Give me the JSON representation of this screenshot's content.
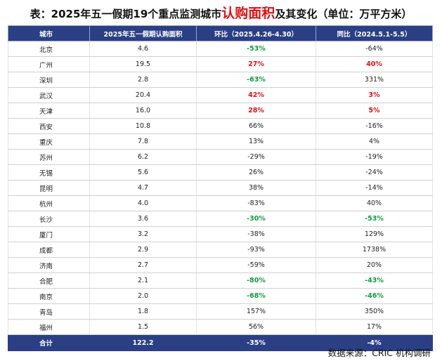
{
  "title": {
    "prefix": "表：2025年五一假期19个重点监测城市",
    "highlight": "认购面积",
    "suffix": "及其变化（单位：万平方米）"
  },
  "table": {
    "headers": [
      "城市",
      "2025年五一假期认购面积",
      "环比（2025.4.26-4.30）",
      "同比（2024.5.1-5.5）"
    ],
    "rows": [
      {
        "city": "北京",
        "area": "4.6",
        "mom": "-53%",
        "mom_style": "down",
        "yoy": "-64%",
        "yoy_style": "plain"
      },
      {
        "city": "广州",
        "area": "19.5",
        "mom": "27%",
        "mom_style": "up",
        "yoy": "40%",
        "yoy_style": "up"
      },
      {
        "city": "深圳",
        "area": "2.8",
        "mom": "-63%",
        "mom_style": "down",
        "yoy": "331%",
        "yoy_style": "plain"
      },
      {
        "city": "武汉",
        "area": "20.4",
        "mom": "42%",
        "mom_style": "up",
        "yoy": "3%",
        "yoy_style": "up"
      },
      {
        "city": "天津",
        "area": "16.0",
        "mom": "28%",
        "mom_style": "up",
        "yoy": "5%",
        "yoy_style": "up"
      },
      {
        "city": "西安",
        "area": "10.8",
        "mom": "66%",
        "mom_style": "plain",
        "yoy": "-16%",
        "yoy_style": "plain"
      },
      {
        "city": "重庆",
        "area": "7.8",
        "mom": "13%",
        "mom_style": "plain",
        "yoy": "4%",
        "yoy_style": "plain"
      },
      {
        "city": "苏州",
        "area": "6.2",
        "mom": "-29%",
        "mom_style": "plain",
        "yoy": "-19%",
        "yoy_style": "plain"
      },
      {
        "city": "无锡",
        "area": "5.6",
        "mom": "26%",
        "mom_style": "plain",
        "yoy": "-24%",
        "yoy_style": "plain"
      },
      {
        "city": "昆明",
        "area": "4.7",
        "mom": "38%",
        "mom_style": "plain",
        "yoy": "-14%",
        "yoy_style": "plain"
      },
      {
        "city": "杭州",
        "area": "4.0",
        "mom": "-83%",
        "mom_style": "plain",
        "yoy": "40%",
        "yoy_style": "plain"
      },
      {
        "city": "长沙",
        "area": "3.6",
        "mom": "-30%",
        "mom_style": "down",
        "yoy": "-53%",
        "yoy_style": "down"
      },
      {
        "city": "厦门",
        "area": "3.2",
        "mom": "-38%",
        "mom_style": "plain",
        "yoy": "129%",
        "yoy_style": "plain"
      },
      {
        "city": "成都",
        "area": "2.9",
        "mom": "-93%",
        "mom_style": "plain",
        "yoy": "1738%",
        "yoy_style": "plain"
      },
      {
        "city": "济南",
        "area": "2.7",
        "mom": "-59%",
        "mom_style": "plain",
        "yoy": "20%",
        "yoy_style": "plain"
      },
      {
        "city": "合肥",
        "area": "2.1",
        "mom": "-80%",
        "mom_style": "down",
        "yoy": "-43%",
        "yoy_style": "down"
      },
      {
        "city": "南京",
        "area": "2.0",
        "mom": "-68%",
        "mom_style": "down",
        "yoy": "-46%",
        "yoy_style": "down"
      },
      {
        "city": "青岛",
        "area": "1.8",
        "mom": "157%",
        "mom_style": "plain",
        "yoy": "350%",
        "yoy_style": "plain"
      },
      {
        "city": "福州",
        "area": "1.5",
        "mom": "56%",
        "mom_style": "plain",
        "yoy": "17%",
        "yoy_style": "plain"
      }
    ],
    "total": {
      "city": "合计",
      "area": "122.2",
      "mom": "-35%",
      "yoy": "-4%"
    }
  },
  "source": "数据来源：CRIC 机构调研",
  "colors": {
    "header_bg": "#2b3f85",
    "up": "#e01010",
    "down": "#129a3c"
  }
}
